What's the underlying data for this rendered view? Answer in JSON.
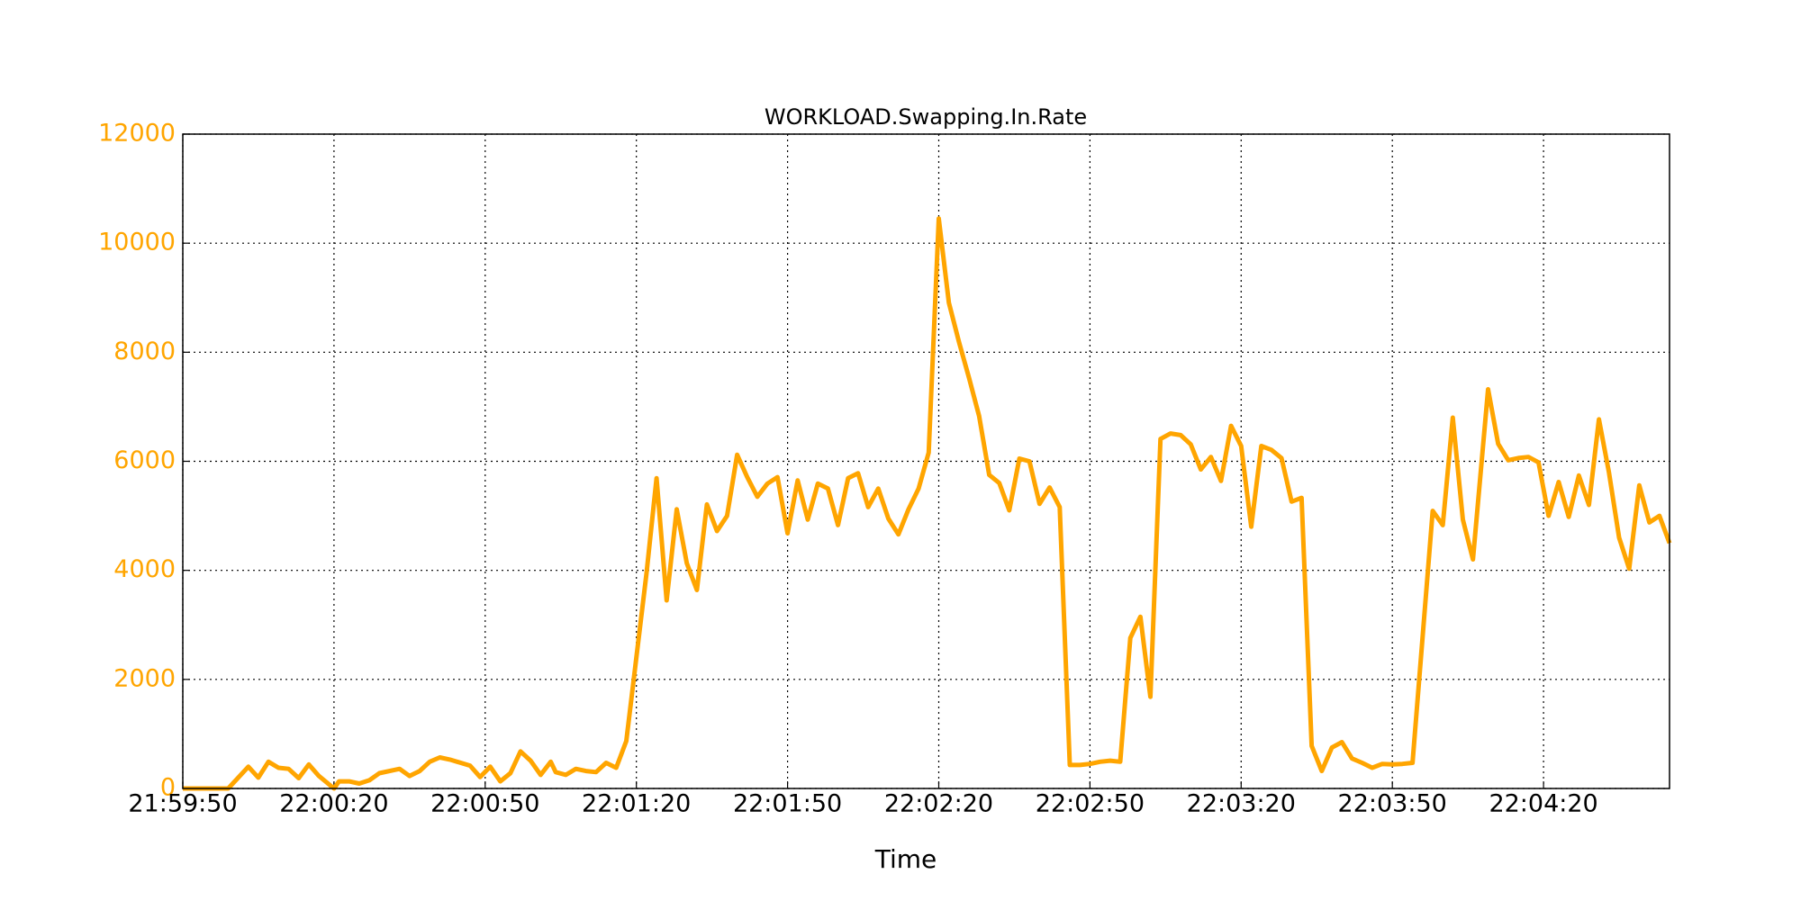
{
  "chart_data": {
    "type": "line",
    "title": "WORKLOAD.Swapping.In.Rate",
    "x_label": "Time",
    "x": [
      "21:59:50",
      "21:59:59",
      "22:00:03",
      "22:00:05",
      "22:00:07",
      "22:00:09",
      "22:00:11",
      "22:00:13",
      "22:00:15",
      "22:00:17",
      "22:00:20",
      "22:00:21",
      "22:00:23",
      "22:00:25",
      "22:00:27",
      "22:00:29",
      "22:00:33",
      "22:00:35",
      "22:00:37",
      "22:00:39",
      "22:00:41",
      "22:00:43",
      "22:00:47",
      "22:00:49",
      "22:00:51",
      "22:00:53",
      "22:00:55",
      "22:00:57",
      "22:00:59",
      "22:01:01",
      "22:01:03",
      "22:01:04",
      "22:01:06",
      "22:01:08",
      "22:01:10",
      "22:01:12",
      "22:01:14",
      "22:01:16",
      "22:01:18",
      "22:01:22",
      "22:01:24",
      "22:01:26",
      "22:01:28",
      "22:01:30",
      "22:01:32",
      "22:01:34",
      "22:01:36",
      "22:01:38",
      "22:01:40",
      "22:01:42",
      "22:01:44",
      "22:01:46",
      "22:01:48",
      "22:01:50",
      "22:01:52",
      "22:01:54",
      "22:01:56",
      "22:01:58",
      "22:02:00",
      "22:02:02",
      "22:02:04",
      "22:02:06",
      "22:02:08",
      "22:02:10",
      "22:02:12",
      "22:02:14",
      "22:02:16",
      "22:02:18",
      "22:02:20",
      "22:02:22",
      "22:02:24",
      "22:02:26",
      "22:02:28",
      "22:02:30",
      "22:02:32",
      "22:02:34",
      "22:02:36",
      "22:02:38",
      "22:02:40",
      "22:02:42",
      "22:02:44",
      "22:02:46",
      "22:02:48",
      "22:02:50",
      "22:02:52",
      "22:02:54",
      "22:02:56",
      "22:02:58",
      "22:03:00",
      "22:03:02",
      "22:03:04",
      "22:03:06",
      "22:03:08",
      "22:03:10",
      "22:03:12",
      "22:03:14",
      "22:03:16",
      "22:03:18",
      "22:03:20",
      "22:03:22",
      "22:03:24",
      "22:03:26",
      "22:03:28",
      "22:03:30",
      "22:03:32",
      "22:03:34",
      "22:03:36",
      "22:03:38",
      "22:03:40",
      "22:03:42",
      "22:03:44",
      "22:03:46",
      "22:03:48",
      "22:03:50",
      "22:03:52",
      "22:03:54",
      "22:03:58",
      "22:04:00",
      "22:04:02",
      "22:04:04",
      "22:04:06",
      "22:04:09",
      "22:04:11",
      "22:04:13",
      "22:04:15",
      "22:04:17",
      "22:04:19",
      "22:04:21",
      "22:04:23",
      "22:04:25",
      "22:04:27",
      "22:04:29",
      "22:04:31",
      "22:04:33",
      "22:04:35",
      "22:04:37",
      "22:04:39",
      "22:04:41",
      "22:04:43",
      "22:04:45"
    ],
    "values": [
      0,
      0,
      400,
      200,
      490,
      380,
      360,
      190,
      440,
      230,
      0,
      130,
      130,
      90,
      150,
      280,
      360,
      230,
      320,
      490,
      570,
      530,
      420,
      210,
      400,
      130,
      280,
      680,
      510,
      250,
      490,
      300,
      250,
      360,
      320,
      300,
      470,
      380,
      870,
      3940,
      5690,
      3450,
      5120,
      4130,
      3640,
      5210,
      4720,
      5000,
      6120,
      5710,
      5350,
      5590,
      5710,
      4680,
      5650,
      4930,
      5590,
      5500,
      4830,
      5690,
      5780,
      5160,
      5500,
      4950,
      4660,
      5120,
      5500,
      6160,
      10450,
      8910,
      8190,
      7530,
      6830,
      5750,
      5600,
      5100,
      6050,
      6000,
      5220,
      5520,
      5160,
      430,
      430,
      450,
      490,
      510,
      490,
      2760,
      3150,
      1680,
      6410,
      6510,
      6480,
      6310,
      5850,
      6080,
      5640,
      6650,
      6280,
      4800,
      6280,
      6210,
      6060,
      5260,
      5330,
      780,
      320,
      750,
      850,
      550,
      470,
      380,
      450,
      440,
      450,
      470,
      5090,
      4830,
      6800,
      4930,
      4200,
      7320,
      6320,
      6020,
      6060,
      6080,
      5980,
      5000,
      5620,
      4980,
      5740,
      5200,
      6770,
      5790,
      4600,
      4030,
      5560,
      4880,
      5000,
      4500
    ],
    "color": "#ffa500",
    "ytick_color": "#ffa500",
    "xlim": [
      "21:59:50",
      "22:04:45"
    ],
    "xticks": [
      "21:59:50",
      "22:00:20",
      "22:00:50",
      "22:01:20",
      "22:01:50",
      "22:02:20",
      "22:02:50",
      "22:03:20",
      "22:03:50",
      "22:04:20"
    ],
    "ylim": [
      0,
      12000
    ],
    "yticks": [
      0,
      2000,
      4000,
      6000,
      8000,
      10000,
      12000
    ],
    "grid": true
  }
}
